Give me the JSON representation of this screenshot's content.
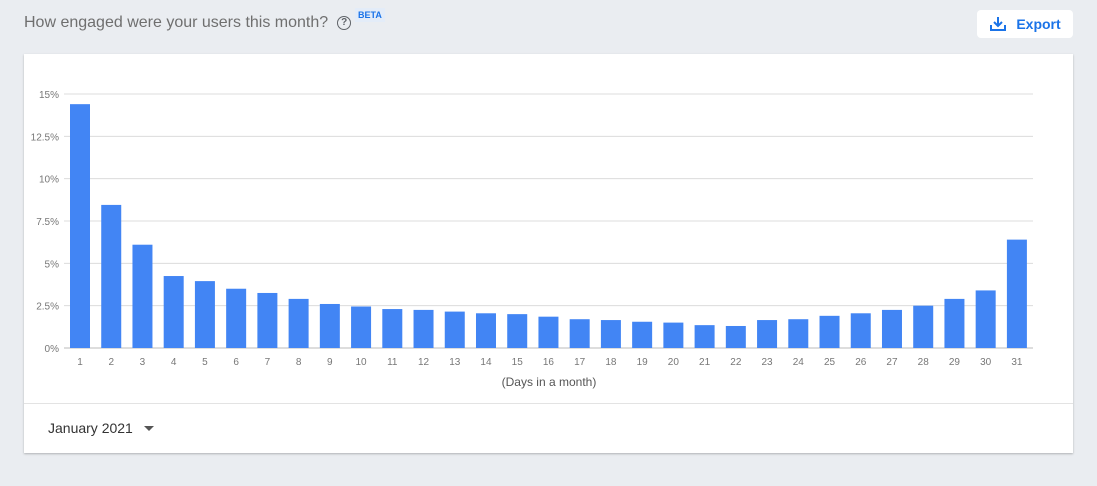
{
  "header": {
    "title": "How engaged were your users this month?",
    "help_icon": "help-circle-icon",
    "badge": "BETA",
    "export_label": "Export",
    "export_icon": "download-icon"
  },
  "footer": {
    "selected_month": "January 2021"
  },
  "colors": {
    "bar": "#4285f4",
    "accent": "#1a73e8",
    "grid": "#dcdcdc"
  },
  "chart_data": {
    "type": "bar",
    "xlabel": "(Days in a month)",
    "ylabel": "",
    "ylim": [
      0,
      15
    ],
    "yticks": [
      "0%",
      "2.5%",
      "5%",
      "7.5%",
      "10%",
      "12.5%",
      "15%"
    ],
    "ytick_values": [
      0,
      2.5,
      5,
      7.5,
      10,
      12.5,
      15
    ],
    "grid": true,
    "categories": [
      "1",
      "2",
      "3",
      "4",
      "5",
      "6",
      "7",
      "8",
      "9",
      "10",
      "11",
      "12",
      "13",
      "14",
      "15",
      "16",
      "17",
      "18",
      "19",
      "20",
      "21",
      "22",
      "23",
      "24",
      "25",
      "26",
      "27",
      "28",
      "29",
      "30",
      "31"
    ],
    "values": [
      14.4,
      8.45,
      6.1,
      4.25,
      3.95,
      3.5,
      3.25,
      2.9,
      2.6,
      2.45,
      2.3,
      2.25,
      2.15,
      2.05,
      2.0,
      1.85,
      1.7,
      1.65,
      1.55,
      1.5,
      1.35,
      1.3,
      1.65,
      1.7,
      1.9,
      2.05,
      2.25,
      2.5,
      2.9,
      3.4,
      6.4
    ]
  }
}
